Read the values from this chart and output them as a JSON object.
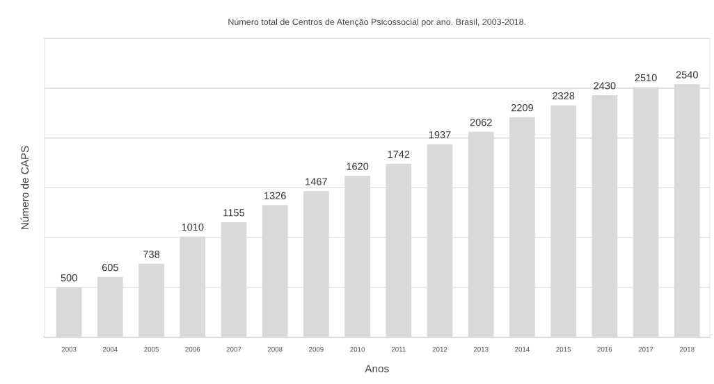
{
  "chart_data": {
    "type": "bar",
    "title": "Número total de Centros de Atenção Psicossocial por ano. Brasil, 2003-2018.",
    "xlabel": "Anos",
    "ylabel": "Número de CAPS",
    "categories": [
      "2003",
      "2004",
      "2005",
      "2006",
      "2007",
      "2008",
      "2009",
      "2010",
      "2011",
      "2012",
      "2013",
      "2014",
      "2015",
      "2016",
      "2017",
      "2018"
    ],
    "values": [
      500,
      605,
      738,
      1010,
      1155,
      1326,
      1467,
      1620,
      1742,
      1937,
      2062,
      2209,
      2328,
      2430,
      2510,
      2540
    ],
    "color": "#d9d9d9",
    "data_labels": true,
    "ylim": [
      0,
      3000
    ],
    "yticks": [
      {
        "value": 0,
        "label": null
      },
      {
        "value": 500,
        "label": null
      },
      {
        "value": 1000,
        "label": null
      },
      {
        "value": 1500,
        "label": null
      },
      {
        "value": 2000,
        "label": null
      },
      {
        "value": 2500,
        "label": null
      },
      {
        "value": 3000,
        "label": null
      }
    ],
    "grid": "y",
    "tick_labels": "x",
    "legend": false
  }
}
